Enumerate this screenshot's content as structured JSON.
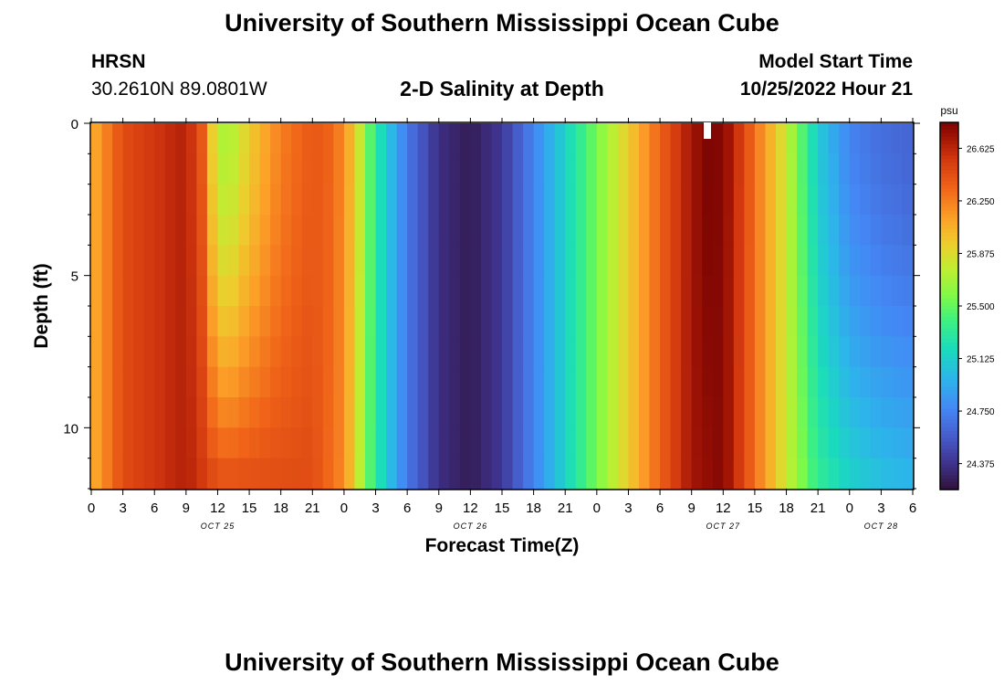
{
  "header": {
    "title": "University of Southern Mississippi Ocean Cube",
    "station": "HRSN",
    "coords": "30.2610N  89.0801W",
    "subtitle": "2-D Salinity at Depth",
    "model_label": "Model Start Time",
    "model_time": "10/25/2022 Hour 21"
  },
  "footer": {
    "title": "University of Southern Mississippi Ocean Cube"
  },
  "chart_data": {
    "type": "heatmap",
    "title": "2-D Salinity at Depth",
    "xlabel": "Forecast Time(Z)",
    "ylabel": "Depth (ft)",
    "x_range_hours": [
      0,
      78
    ],
    "x_ticks": [
      "0",
      "3",
      "6",
      "9",
      "12",
      "15",
      "18",
      "21",
      "0",
      "3",
      "6",
      "9",
      "12",
      "15",
      "18",
      "21",
      "0",
      "3",
      "6",
      "9",
      "12",
      "15",
      "18",
      "21",
      "0",
      "3",
      "6"
    ],
    "day_labels": [
      {
        "label": "OCT 25",
        "hour": 12
      },
      {
        "label": "OCT 26",
        "hour": 36
      },
      {
        "label": "OCT 27",
        "hour": 60
      },
      {
        "label": "OCT 28",
        "hour": 75
      }
    ],
    "y_range": [
      0,
      12
    ],
    "y_ticks": [
      0,
      5,
      10
    ],
    "colorbar": {
      "unit": "psu",
      "range": [
        24.19,
        26.81
      ],
      "tick_values": [
        26.625,
        26.25,
        25.875,
        25.5,
        25.125,
        24.75,
        24.375
      ],
      "tick_labels": [
        "26.625",
        "26.250",
        "25.875",
        "25.500",
        "25.125",
        "24.750",
        "24.375"
      ]
    },
    "surface_salinity_psu": {
      "hours": [
        0,
        3,
        6,
        9,
        10.5,
        12,
        13.5,
        15,
        18,
        21,
        22.5,
        24,
        25.5,
        27,
        30,
        33,
        36,
        39,
        42,
        45,
        48,
        51,
        54,
        57,
        58.5,
        60,
        61.5,
        63,
        66,
        69,
        72,
        75,
        78
      ],
      "values": [
        26.05,
        26.45,
        26.55,
        26.65,
        26.4,
        25.7,
        25.75,
        25.95,
        26.25,
        26.4,
        26.35,
        26.2,
        25.8,
        25.3,
        24.7,
        24.35,
        24.25,
        24.4,
        24.75,
        25.15,
        25.55,
        25.95,
        26.35,
        26.7,
        26.8,
        26.78,
        26.55,
        26.3,
        25.8,
        25.1,
        24.75,
        24.65,
        24.6
      ]
    },
    "bottom_salinity_psu": {
      "hours": [
        0,
        3,
        6,
        9,
        10.5,
        12,
        15,
        18,
        21,
        24,
        27,
        30,
        33,
        36,
        39,
        42,
        45,
        48,
        51,
        54,
        57,
        60,
        63,
        66,
        69,
        72,
        75,
        78
      ],
      "values": [
        26.05,
        26.45,
        26.55,
        26.65,
        26.55,
        26.45,
        26.45,
        26.45,
        26.45,
        26.2,
        25.3,
        24.7,
        24.35,
        24.25,
        24.4,
        24.75,
        25.15,
        25.55,
        25.95,
        26.35,
        26.7,
        26.78,
        26.3,
        25.8,
        25.35,
        25.15,
        25.05,
        25.0
      ]
    }
  }
}
